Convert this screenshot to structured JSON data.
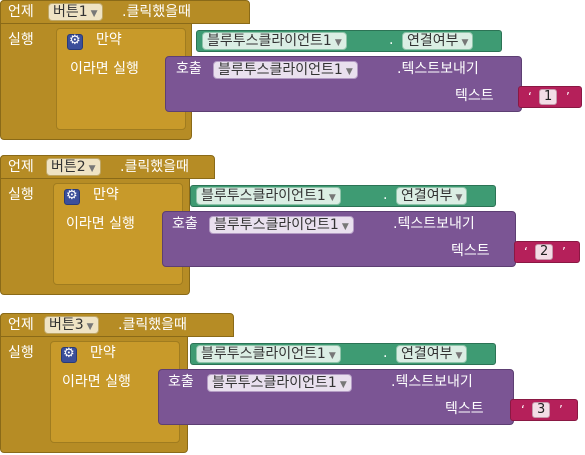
{
  "events": [
    {
      "when_label": "언제",
      "component": "버튼1",
      "event": ".클릭했을때",
      "do_label": "실행",
      "if_label": "만약",
      "then_label": "이라면 실행",
      "bt_component": "블루투스클라이언트1",
      "bt_property": "연결여부",
      "call_label": "호출",
      "call_method": ".텍스트보내기",
      "text_param": "텍스트",
      "text_value": "1"
    },
    {
      "when_label": "언제",
      "component": "버튼2",
      "event": ".클릭했을때",
      "do_label": "실행",
      "if_label": "만약",
      "then_label": "이라면 실행",
      "bt_component": "블루투스클라이언트1",
      "bt_property": "연결여부",
      "call_label": "호출",
      "call_method": ".텍스트보내기",
      "text_param": "텍스트",
      "text_value": "2"
    },
    {
      "when_label": "언제",
      "component": "버튼3",
      "event": ".클릭했을때",
      "do_label": "실행",
      "if_label": "만약",
      "then_label": "이라면 실행",
      "bt_component": "블루투스클라이언트1",
      "bt_property": "연결여부",
      "call_label": "호출",
      "call_method": ".텍스트보내기",
      "text_param": "텍스트",
      "text_value": "3"
    }
  ],
  "colors": {
    "event_block": "#b68c25",
    "if_block": "#c89a2a",
    "call_block": "#7b5594",
    "getter_block": "#3e9b73",
    "text_block": "#b5205a",
    "mutator_icon": "#3b4f9a"
  },
  "icons": {
    "dropdown": "dropdown-arrow-icon",
    "mutator": "gear-icon"
  }
}
